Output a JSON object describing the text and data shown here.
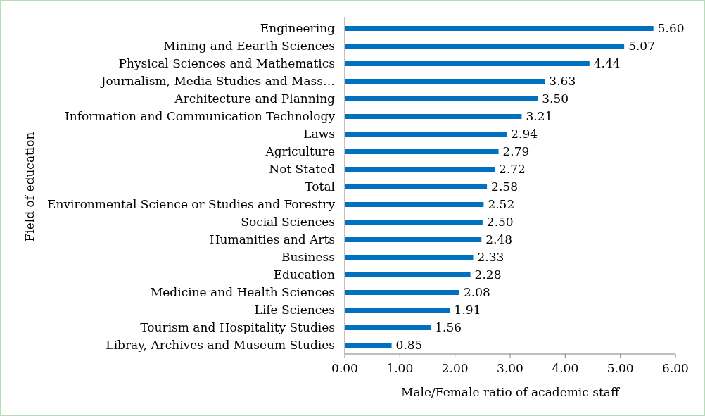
{
  "chart_data": {
    "type": "bar",
    "orientation": "horizontal",
    "xlabel": "Male/Female ratio of academic staff",
    "ylabel": "Field of education",
    "categories": [
      "Engineering",
      "Mining and Eearth Sciences",
      "Physical Sciences and Mathematics",
      "Journalism, Media Studies and Mass…",
      "Architecture and Planning",
      "Information and Communication Technology",
      "Laws",
      "Agriculture",
      "Not Stated",
      "Total",
      "Environmental Science or Studies and Forestry",
      "Social Sciences",
      "Humanities and Arts",
      "Business",
      "Education",
      "Medicine and Health Sciences",
      "Life Sciences",
      "Tourism and Hospitality Studies",
      "Libray, Archives and Museum Studies"
    ],
    "values": [
      5.6,
      5.07,
      4.44,
      3.63,
      3.5,
      3.21,
      2.94,
      2.79,
      2.72,
      2.58,
      2.52,
      2.5,
      2.48,
      2.33,
      2.28,
      2.08,
      1.91,
      1.56,
      0.85
    ],
    "value_labels": [
      "5.60",
      "5.07",
      "4.44",
      "3.63",
      "3.50",
      "3.21",
      "2.94",
      "2.79",
      "2.72",
      "2.58",
      "2.52",
      "2.50",
      "2.48",
      "2.33",
      "2.28",
      "2.08",
      "1.91",
      "1.56",
      "0.85"
    ],
    "color": "#0070c0",
    "xlim": [
      0,
      6
    ],
    "xticks": [
      {
        "value": 0,
        "label": "0.00"
      },
      {
        "value": 1,
        "label": "1.00"
      },
      {
        "value": 2,
        "label": "2.00"
      },
      {
        "value": 3,
        "label": "3.00"
      },
      {
        "value": 4,
        "label": "4.00"
      },
      {
        "value": 5,
        "label": "5.00"
      },
      {
        "value": 6,
        "label": "6.00"
      }
    ],
    "grid": false
  }
}
